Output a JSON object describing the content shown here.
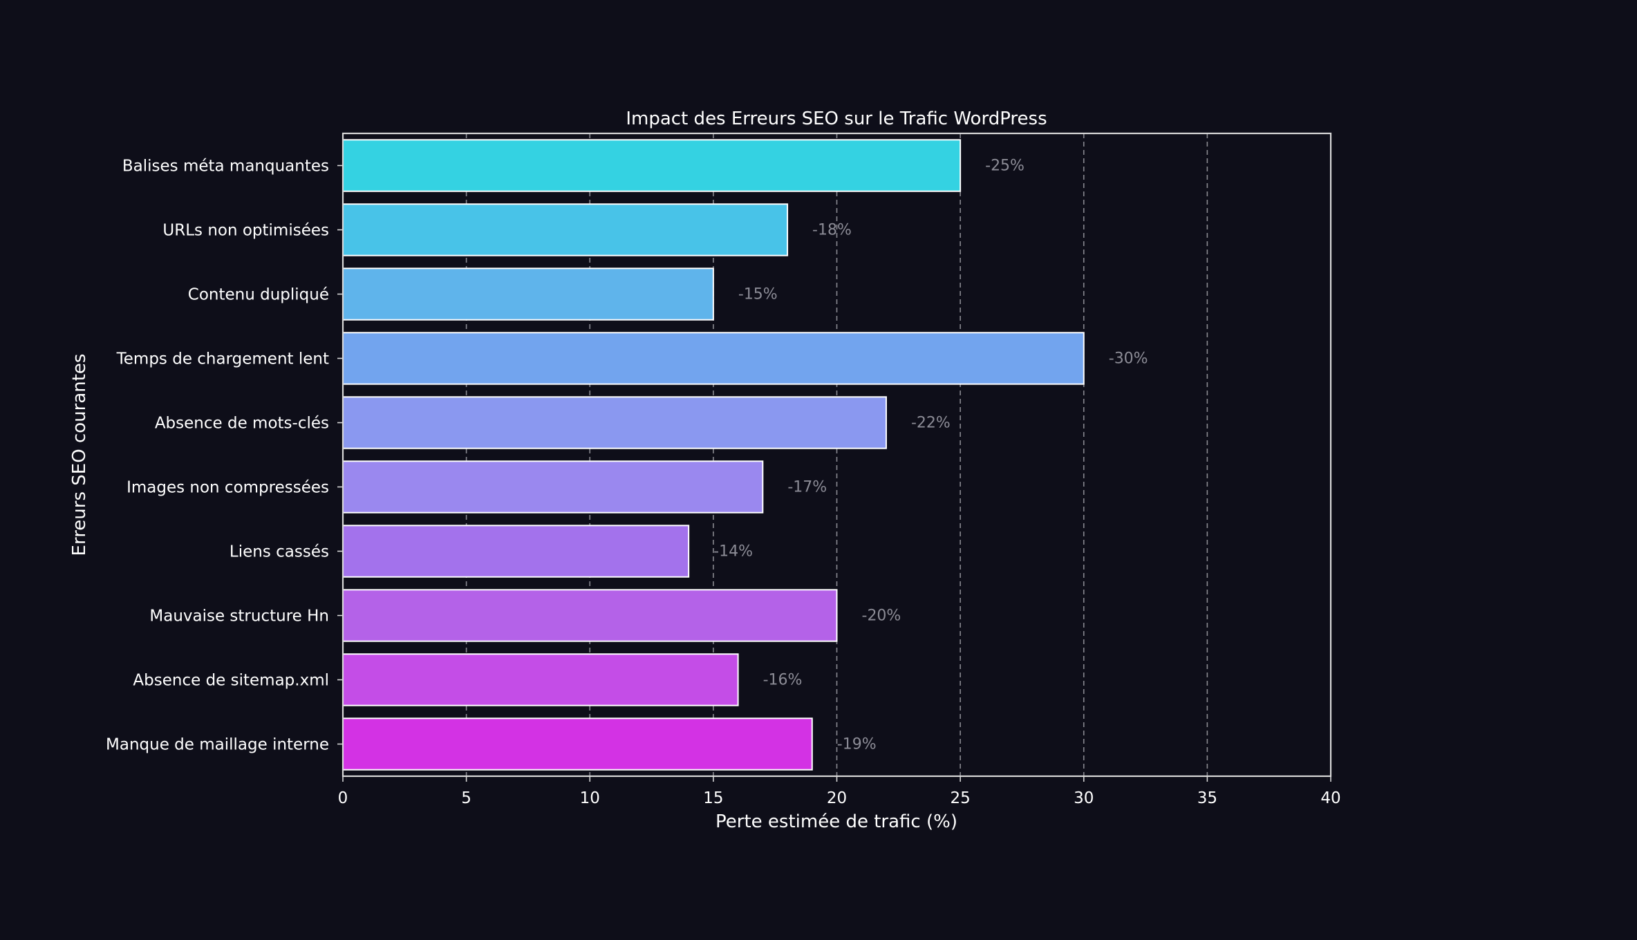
{
  "chart_data": {
    "type": "bar",
    "orientation": "horizontal",
    "title": "Impact des Erreurs SEO sur le Trafic WordPress",
    "xlabel": "Perte estimée de trafic (%)",
    "ylabel": "Erreurs SEO courantes",
    "xlim": [
      0,
      40
    ],
    "xticks": [
      "0",
      "5",
      "10",
      "15",
      "20",
      "25",
      "30",
      "35",
      "40"
    ],
    "grid": "vertical dashed",
    "categories": [
      "Balises méta manquantes",
      "URLs non optimisées",
      "Contenu dupliqué",
      "Temps de chargement lent",
      "Absence de mots-clés",
      "Images non compressées",
      "Liens cassés",
      "Mauvaise structure Hn",
      "Absence de sitemap.xml",
      "Manque de maillage interne"
    ],
    "values": [
      25,
      18,
      15,
      30,
      22,
      17,
      14,
      20,
      16,
      19
    ],
    "data_labels": [
      "-25%",
      "-18%",
      "-15%",
      "-30%",
      "-22%",
      "-17%",
      "-14%",
      "-20%",
      "-16%",
      "-19%"
    ],
    "colors": [
      "#34d2e2",
      "#48c3e8",
      "#5fb4eb",
      "#72a4ee",
      "#8a98f0",
      "#9a88ef",
      "#a372ec",
      "#b462e8",
      "#c44de7",
      "#d332e4"
    ],
    "background": "#0e0e19",
    "text_color": "#ffffff",
    "label_color": "#8c8c96"
  }
}
